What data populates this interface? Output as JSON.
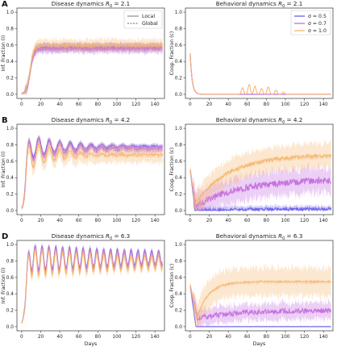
{
  "colors": {
    "sigma_0_5": "#6a5cf0",
    "sigma_0_7": "#c46be0",
    "sigma_1_0": "#f5b56c",
    "axis": "#333333",
    "local_line": "#666666"
  },
  "legend_disease": {
    "entries": [
      {
        "label": "Local",
        "style": "solid"
      },
      {
        "label": "Global",
        "style": "dashed"
      }
    ]
  },
  "legend_behavior": {
    "entries": [
      {
        "label": "σ = 0.5",
        "color_key": "sigma_0_5"
      },
      {
        "label": "σ = 0.7",
        "color_key": "sigma_0_7"
      },
      {
        "label": "σ = 1.0",
        "color_key": "sigma_1_0"
      }
    ]
  },
  "chart_data": [
    {
      "panel_letter": "A",
      "type": "line",
      "title": "Disease dynamics R0 = 2.1",
      "title_main": "Disease dynamics ",
      "title_R": "R",
      "title_sub": "0",
      "title_eq": " = 2.1",
      "xlabel": "",
      "ylabel": "Inf. Fraction (I)",
      "xlim": [
        -5,
        150
      ],
      "ylim": [
        -0.05,
        1.05
      ],
      "xticks": [
        0,
        20,
        40,
        60,
        80,
        100,
        120,
        140
      ],
      "yticks": [
        0.0,
        0.2,
        0.4,
        0.6,
        0.8,
        1.0
      ],
      "legend": "top-right",
      "series": [
        {
          "color_key": "sigma_0_5",
          "kind": "logistic",
          "plateau": 0.57,
          "rise": 9,
          "band": 0.05,
          "osc_amp": 0,
          "noise": 0.015
        },
        {
          "color_key": "sigma_0_7",
          "kind": "logistic",
          "plateau": 0.56,
          "rise": 9,
          "band": 0.06,
          "osc_amp": 0,
          "noise": 0.015
        },
        {
          "color_key": "sigma_1_0",
          "kind": "logistic",
          "plateau": 0.6,
          "rise": 9,
          "band": 0.07,
          "osc_amp": 0,
          "noise": 0.02
        }
      ]
    },
    {
      "panel_letter": "",
      "type": "line",
      "title": "Behavioral dynamics R0 = 2.1",
      "title_main": "Behavioral dynamics ",
      "title_R": "R",
      "title_sub": "0",
      "title_eq": " = 2.1",
      "xlabel": "",
      "ylabel": "Coop. Fraction (c)",
      "xlim": [
        -5,
        150
      ],
      "ylim": [
        -0.05,
        1.05
      ],
      "xticks": [
        0,
        20,
        40,
        60,
        80,
        100,
        120,
        140
      ],
      "yticks": [
        0.0,
        0.2,
        0.4,
        0.6,
        0.8,
        1.0
      ],
      "legend": "top-right",
      "series": [
        {
          "color_key": "sigma_0_5",
          "kind": "decay",
          "start": 0.5,
          "decay_to": 0.0,
          "tau": 2,
          "band": 0.0,
          "noise": 0
        },
        {
          "color_key": "sigma_0_7",
          "kind": "decay",
          "start": 0.5,
          "decay_to": 0.0,
          "tau": 2,
          "band": 0.0,
          "noise": 0
        },
        {
          "color_key": "sigma_1_0",
          "kind": "decay",
          "start": 0.5,
          "decay_to": 0.0,
          "tau": 2,
          "band": 0.0,
          "noise": 0,
          "spikes": [
            [
              55,
              0.08
            ],
            [
              62,
              0.12
            ],
            [
              68,
              0.1
            ],
            [
              75,
              0.07
            ],
            [
              82,
              0.09
            ],
            [
              90,
              0.05
            ],
            [
              98,
              0.03
            ]
          ]
        }
      ]
    },
    {
      "panel_letter": "B",
      "type": "line",
      "title": "Disease dynamics R0 = 4.2",
      "title_main": "Disease dynamics ",
      "title_R": "R",
      "title_sub": "0",
      "title_eq": " = 4.2",
      "xlabel": "",
      "ylabel": "Inf. Fraction (I)",
      "xlim": [
        -5,
        150
      ],
      "ylim": [
        -0.05,
        1.05
      ],
      "xticks": [
        0,
        20,
        40,
        60,
        80,
        100,
        120,
        140
      ],
      "yticks": [
        0.0,
        0.2,
        0.4,
        0.6,
        0.8,
        1.0
      ],
      "legend": "none",
      "series": [
        {
          "color_key": "sigma_0_5",
          "kind": "damped",
          "plateau": 0.78,
          "peak": 0.95,
          "period": 11,
          "decay": 40,
          "band": 0.03,
          "noise": 0.01
        },
        {
          "color_key": "sigma_0_7",
          "kind": "damped",
          "plateau": 0.75,
          "peak": 0.93,
          "period": 11,
          "decay": 40,
          "band": 0.05,
          "noise": 0.012
        },
        {
          "color_key": "sigma_1_0",
          "kind": "damped",
          "plateau": 0.68,
          "peak": 0.9,
          "period": 11,
          "decay": 30,
          "band": 0.1,
          "noise": 0.015
        }
      ]
    },
    {
      "panel_letter": "",
      "type": "line",
      "title": "Behavioral dynamics R0 = 4.2",
      "title_main": "Behavioral dynamics ",
      "title_R": "R",
      "title_sub": "0",
      "title_eq": " = 4.2",
      "xlabel": "",
      "ylabel": "Coop. Fraction (c)",
      "xlim": [
        -5,
        150
      ],
      "ylim": [
        -0.05,
        1.05
      ],
      "xticks": [
        0,
        20,
        40,
        60,
        80,
        100,
        120,
        140
      ],
      "yticks": [
        0.0,
        0.2,
        0.4,
        0.6,
        0.8,
        1.0
      ],
      "legend": "none",
      "series": [
        {
          "color_key": "sigma_0_5",
          "kind": "dipgrow",
          "start": 0.5,
          "low": 0.0,
          "final": 0.02,
          "tdip": 5,
          "tau": 60,
          "band": 0.04,
          "noise": 0.02
        },
        {
          "color_key": "sigma_0_7",
          "kind": "dipgrow",
          "start": 0.5,
          "low": 0.05,
          "final": 0.38,
          "tdip": 6,
          "tau": 45,
          "band": 0.15,
          "noise": 0.04
        },
        {
          "color_key": "sigma_1_0",
          "kind": "dipgrow",
          "start": 0.5,
          "low": 0.08,
          "final": 0.68,
          "tdip": 5,
          "tau": 35,
          "band": 0.15,
          "noise": 0.02
        }
      ]
    },
    {
      "panel_letter": "D",
      "type": "line",
      "title": "Disease dynamics R0 = 6.3",
      "title_main": "Disease dynamics ",
      "title_R": "R",
      "title_sub": "0",
      "title_eq": " = 6.3",
      "xlabel": "Days",
      "ylabel": "Inf. Fraction (I)",
      "xlim": [
        -5,
        150
      ],
      "ylim": [
        -0.05,
        1.05
      ],
      "xticks": [
        0,
        20,
        40,
        60,
        80,
        100,
        120,
        140
      ],
      "yticks": [
        0.0,
        0.2,
        0.4,
        0.6,
        0.8,
        1.0
      ],
      "legend": "none",
      "series": [
        {
          "color_key": "sigma_0_5",
          "kind": "damped",
          "plateau": 0.84,
          "peak": 1.0,
          "period": 7.2,
          "decay": 220,
          "band": 0.03,
          "noise": 0.005
        },
        {
          "color_key": "sigma_0_7",
          "kind": "damped",
          "plateau": 0.82,
          "peak": 0.98,
          "period": 7.2,
          "decay": 200,
          "band": 0.04,
          "noise": 0.006
        },
        {
          "color_key": "sigma_1_0",
          "kind": "damped",
          "plateau": 0.78,
          "peak": 0.96,
          "period": 7.2,
          "decay": 160,
          "band": 0.06,
          "noise": 0.008
        }
      ]
    },
    {
      "panel_letter": "",
      "type": "line",
      "title": "Behavioral dynamics R0 = 6.3",
      "title_main": "Behavioral dynamics ",
      "title_R": "R",
      "title_sub": "0",
      "title_eq": " = 6.3",
      "xlabel": "Days",
      "ylabel": "Coop. Fraction (c)",
      "xlim": [
        -5,
        150
      ],
      "ylim": [
        -0.05,
        1.05
      ],
      "xticks": [
        0,
        20,
        40,
        60,
        80,
        100,
        120,
        140
      ],
      "yticks": [
        0.0,
        0.2,
        0.4,
        0.6,
        0.8,
        1.0
      ],
      "legend": "none",
      "series": [
        {
          "color_key": "sigma_0_5",
          "kind": "dipgrow",
          "start": 0.5,
          "low": 0.0,
          "final": 0.0,
          "tdip": 6,
          "tau": 60,
          "band": 0.01,
          "noise": 0.0
        },
        {
          "color_key": "sigma_0_7",
          "kind": "dipgrow",
          "start": 0.5,
          "low": 0.1,
          "final": 0.2,
          "tdip": 8,
          "tau": 40,
          "band": 0.1,
          "noise": 0.03
        },
        {
          "color_key": "sigma_1_0",
          "kind": "dipgrow",
          "start": 0.5,
          "low": 0.1,
          "final": 0.55,
          "tdip": 7,
          "tau": 12,
          "band": 0.17,
          "noise": 0.01
        }
      ]
    }
  ]
}
